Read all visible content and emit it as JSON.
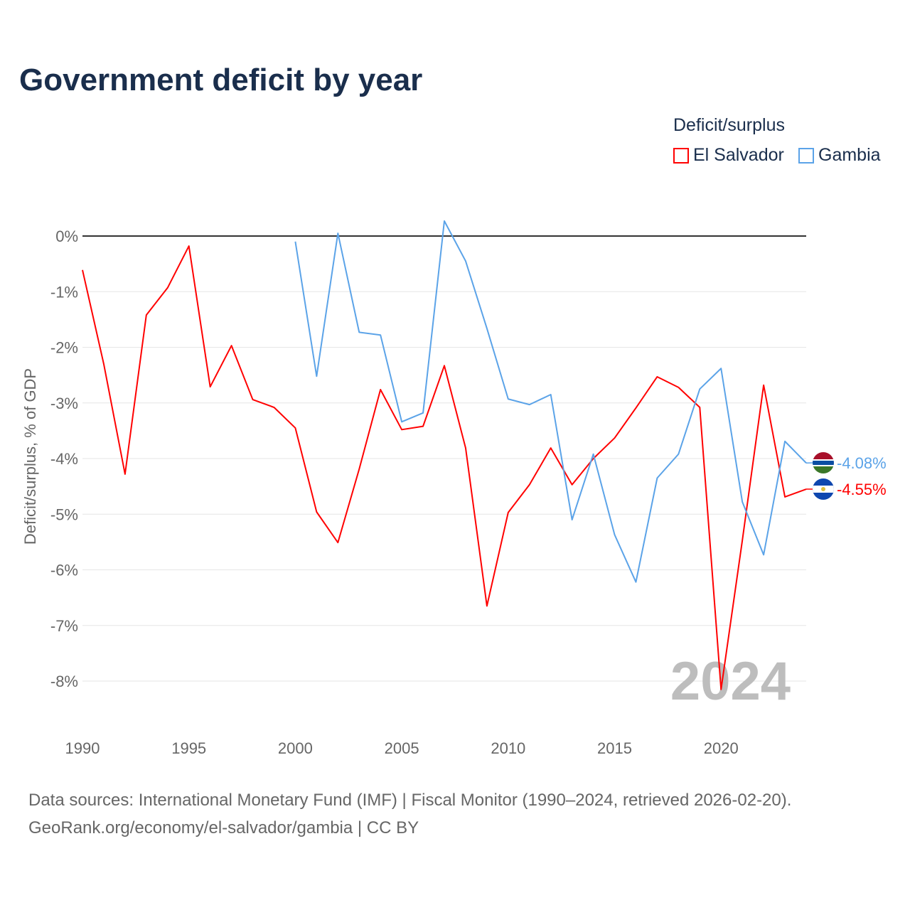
{
  "chart_data": {
    "type": "line",
    "title": "Government deficit by year",
    "ylabel": "Deficit/surplus, % of GDP",
    "xlabel": "",
    "xlim": [
      1990,
      2024
    ],
    "ylim": [
      -8.6,
      0.4
    ],
    "x_ticks": [
      1990,
      1995,
      2000,
      2005,
      2010,
      2015,
      2020
    ],
    "y_ticks": [
      0,
      -1,
      -2,
      -3,
      -4,
      -5,
      -6,
      -7,
      -8
    ],
    "y_tick_labels": [
      "0%",
      "-1%",
      "-2%",
      "-3%",
      "-4%",
      "-5%",
      "-6%",
      "-7%",
      "-8%"
    ],
    "grid": true,
    "legend": {
      "title": "Deficit/surplus",
      "position": "top-right"
    },
    "year_watermark": "2024",
    "series": [
      {
        "name": "El Salvador",
        "color": "#ff0000",
        "end_label": "-4.55%",
        "flag": "el-salvador",
        "x": [
          1990,
          1991,
          1992,
          1993,
          1994,
          1995,
          1996,
          1997,
          1998,
          1999,
          2000,
          2001,
          2002,
          2003,
          2004,
          2005,
          2006,
          2007,
          2008,
          2009,
          2010,
          2011,
          2012,
          2013,
          2014,
          2015,
          2016,
          2017,
          2018,
          2019,
          2020,
          2021,
          2022,
          2023,
          2024
        ],
        "values": [
          -0.61,
          -2.3,
          -4.28,
          -1.42,
          -0.93,
          -0.18,
          -2.71,
          -1.97,
          -2.94,
          -3.08,
          -3.45,
          -4.96,
          -5.51,
          -4.19,
          -2.76,
          -3.48,
          -3.42,
          -2.33,
          -3.81,
          -6.65,
          -4.97,
          -4.47,
          -3.81,
          -4.47,
          -4.0,
          -3.63,
          -3.09,
          -2.53,
          -2.72,
          -3.08,
          -8.15,
          -5.47,
          -2.68,
          -4.69,
          -4.55
        ]
      },
      {
        "name": "Gambia",
        "color": "#5ba3e8",
        "end_label": "-4.08%",
        "flag": "gambia",
        "x": [
          2000,
          2001,
          2002,
          2003,
          2004,
          2005,
          2006,
          2007,
          2008,
          2009,
          2010,
          2011,
          2012,
          2013,
          2014,
          2015,
          2016,
          2017,
          2018,
          2019,
          2020,
          2021,
          2022,
          2023,
          2024
        ],
        "values": [
          -0.1,
          -2.52,
          0.05,
          -1.73,
          -1.78,
          -3.34,
          -3.18,
          0.27,
          -0.45,
          -1.66,
          -2.93,
          -3.03,
          -2.85,
          -5.1,
          -3.92,
          -5.37,
          -6.22,
          -4.35,
          -3.92,
          -2.75,
          -2.38,
          -4.78,
          -5.73,
          -3.69,
          -4.08
        ]
      }
    ]
  },
  "source": {
    "line1": "Data sources: International Monetary Fund (IMF) | Fiscal Monitor (1990–2024, retrieved 2026-02-20).",
    "line2": "GeoRank.org/economy/el-salvador/gambia | CC BY"
  }
}
